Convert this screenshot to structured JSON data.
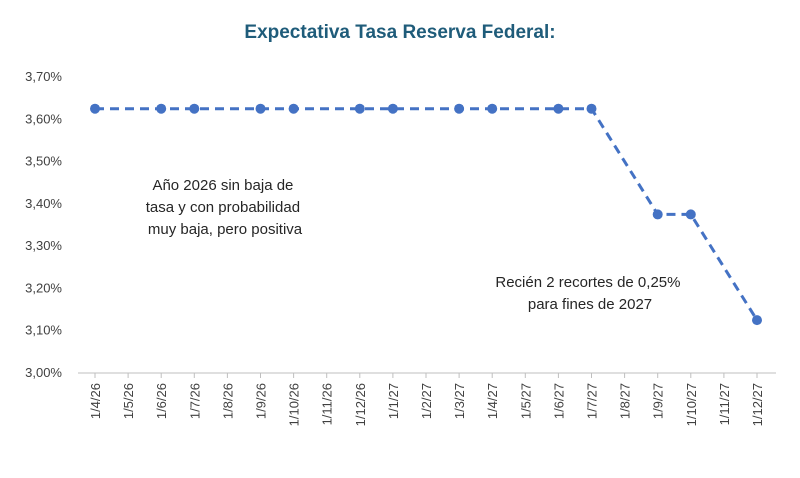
{
  "chart_data": {
    "type": "line",
    "title": "Expectativa Tasa Reserva Federal:",
    "xlabel": "",
    "ylabel": "",
    "categories": [
      "1/4/26",
      "1/5/26",
      "1/6/26",
      "1/7/26",
      "1/8/26",
      "1/9/26",
      "1/10/26",
      "1/11/26",
      "1/12/26",
      "1/1/27",
      "1/2/27",
      "1/3/27",
      "1/4/27",
      "1/5/27",
      "1/6/27",
      "1/7/27",
      "1/8/27",
      "1/9/27",
      "1/10/27",
      "1/11/27",
      "1/12/27"
    ],
    "points": [
      {
        "x": "1/4/26",
        "y": 3.625
      },
      {
        "x": "1/6/26",
        "y": 3.625
      },
      {
        "x": "1/7/26",
        "y": 3.625
      },
      {
        "x": "1/9/26",
        "y": 3.625
      },
      {
        "x": "1/10/26",
        "y": 3.625
      },
      {
        "x": "1/12/26",
        "y": 3.625
      },
      {
        "x": "1/1/27",
        "y": 3.625
      },
      {
        "x": "1/3/27",
        "y": 3.625
      },
      {
        "x": "1/4/27",
        "y": 3.625
      },
      {
        "x": "1/6/27",
        "y": 3.625
      },
      {
        "x": "1/7/27",
        "y": 3.625
      },
      {
        "x": "1/9/27",
        "y": 3.375
      },
      {
        "x": "1/10/27",
        "y": 3.375
      },
      {
        "x": "1/12/27",
        "y": 3.125
      }
    ],
    "ylim": [
      3.0,
      3.7
    ],
    "yticks": [
      3.0,
      3.1,
      3.2,
      3.3,
      3.4,
      3.5,
      3.6,
      3.7
    ],
    "ytick_labels": [
      "3,00%",
      "3,10%",
      "3,20%",
      "3,30%",
      "3,40%",
      "3,50%",
      "3,60%",
      "3,70%"
    ],
    "grid": false,
    "line_style": "dashed",
    "color": "#4472c4",
    "annotations": [
      {
        "lines": [
          "Año 2026 sin baja de",
          "tasa y con probabilidad",
          "muy baja, pero positiva"
        ]
      },
      {
        "lines": [
          "Recién 2 recortes de 0,25%",
          "para fines de 2027"
        ]
      }
    ]
  }
}
